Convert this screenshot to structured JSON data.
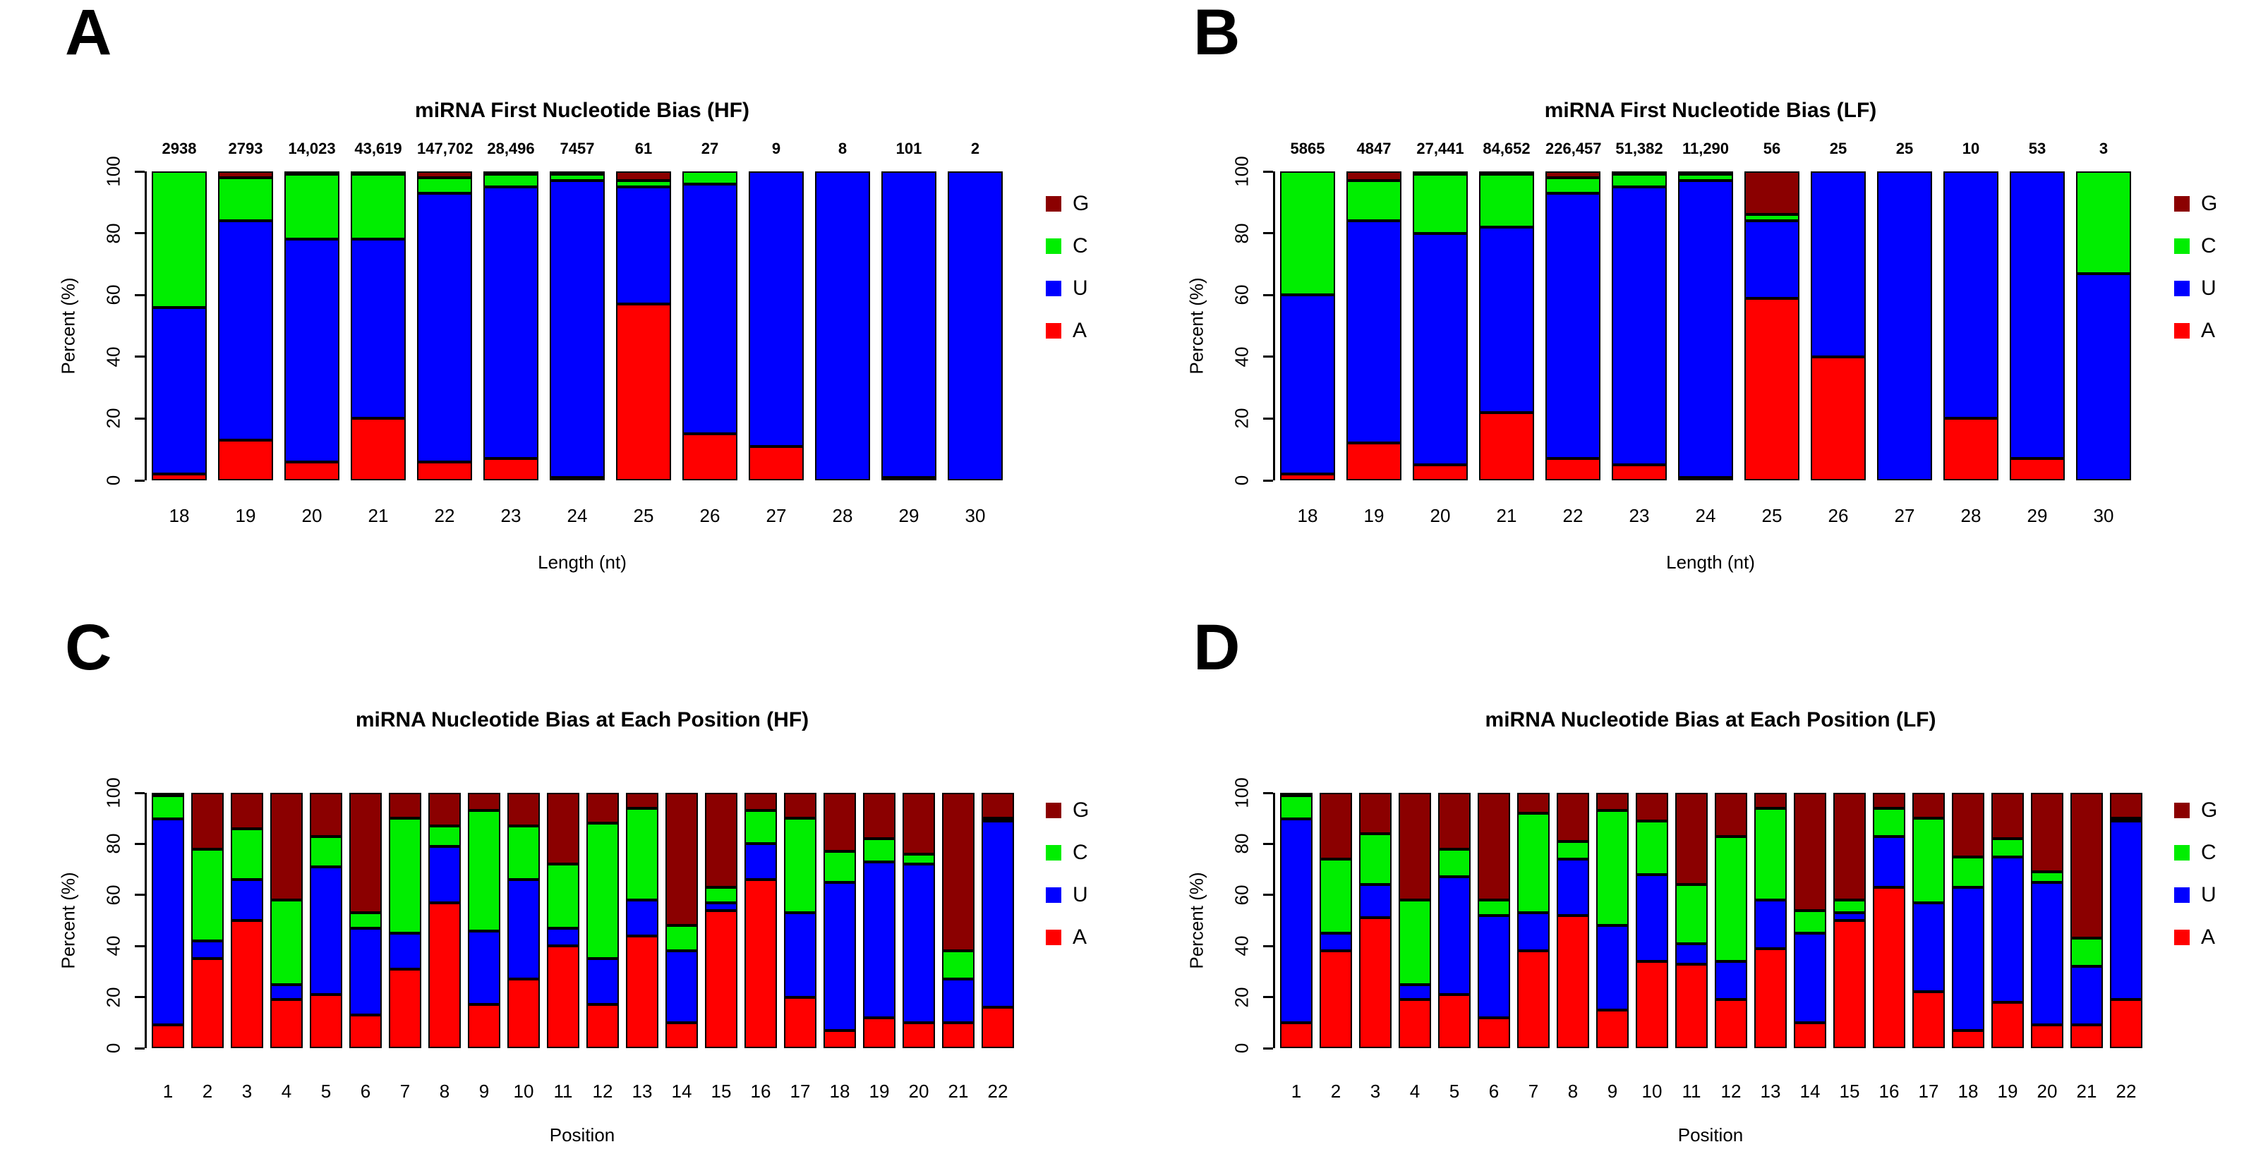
{
  "figure": {
    "background": "#ffffff",
    "colors": {
      "G": "#8b0000",
      "C": "#00ee00",
      "U": "#0000ff",
      "A": "#ff0000"
    },
    "legend_order": [
      "G",
      "C",
      "U",
      "A"
    ]
  },
  "chart_data": [
    {
      "id": "A",
      "panel_letter": "A",
      "type": "bar",
      "stacked": true,
      "title": "miRNA First Nucleotide Bias (HF)",
      "xlabel": "Length (nt)",
      "ylabel": "Percent (%)",
      "ylim": [
        0,
        100
      ],
      "yticks": [
        0,
        20,
        40,
        60,
        80,
        100
      ],
      "legend": [
        "G",
        "C",
        "U",
        "A"
      ],
      "legend_position": "right",
      "grid": false,
      "categories": [
        "18",
        "19",
        "20",
        "21",
        "22",
        "23",
        "24",
        "25",
        "26",
        "27",
        "28",
        "29",
        "30"
      ],
      "bar_counts": [
        "2938",
        "2793",
        "14,023",
        "43,619",
        "147,702",
        "28,496",
        "7457",
        "61",
        "27",
        "9",
        "8",
        "101",
        "2"
      ],
      "series": [
        {
          "name": "A",
          "values": [
            2,
            13,
            6,
            20,
            6,
            7,
            1,
            57,
            15,
            11,
            0,
            1,
            0
          ]
        },
        {
          "name": "U",
          "values": [
            54,
            71,
            72,
            58,
            87,
            88,
            96,
            38,
            81,
            89,
            100,
            99,
            100
          ]
        },
        {
          "name": "C",
          "values": [
            44,
            14,
            21,
            21,
            5,
            4,
            2,
            2,
            4,
            0,
            0,
            0,
            0
          ]
        },
        {
          "name": "G",
          "values": [
            0,
            2,
            1,
            1,
            2,
            1,
            1,
            3,
            0,
            0,
            0,
            0,
            0
          ]
        }
      ]
    },
    {
      "id": "B",
      "panel_letter": "B",
      "type": "bar",
      "stacked": true,
      "title": "miRNA First Nucleotide Bias (LF)",
      "xlabel": "Length (nt)",
      "ylabel": "Percent (%)",
      "ylim": [
        0,
        100
      ],
      "yticks": [
        0,
        20,
        40,
        60,
        80,
        100
      ],
      "legend": [
        "G",
        "C",
        "U",
        "A"
      ],
      "legend_position": "right",
      "grid": false,
      "categories": [
        "18",
        "19",
        "20",
        "21",
        "22",
        "23",
        "24",
        "25",
        "26",
        "27",
        "28",
        "29",
        "30"
      ],
      "bar_counts": [
        "5865",
        "4847",
        "27,441",
        "84,652",
        "226,457",
        "51,382",
        "11,290",
        "56",
        "25",
        "25",
        "10",
        "53",
        "3"
      ],
      "series": [
        {
          "name": "A",
          "values": [
            2,
            12,
            5,
            22,
            7,
            5,
            1,
            59,
            40,
            0,
            20,
            7,
            0
          ]
        },
        {
          "name": "U",
          "values": [
            58,
            72,
            75,
            60,
            86,
            90,
            96,
            25,
            60,
            100,
            80,
            93,
            67
          ]
        },
        {
          "name": "C",
          "values": [
            40,
            13,
            19,
            17,
            5,
            4,
            2,
            2,
            0,
            0,
            0,
            0,
            33
          ]
        },
        {
          "name": "G",
          "values": [
            0,
            3,
            1,
            1,
            2,
            1,
            1,
            14,
            0,
            0,
            0,
            0,
            0
          ]
        }
      ]
    },
    {
      "id": "C",
      "panel_letter": "C",
      "type": "bar",
      "stacked": true,
      "title": "miRNA Nucleotide Bias at Each Position (HF)",
      "xlabel": "Position",
      "ylabel": "Percent (%)",
      "ylim": [
        0,
        100
      ],
      "yticks": [
        0,
        20,
        40,
        60,
        80,
        100
      ],
      "legend": [
        "G",
        "C",
        "U",
        "A"
      ],
      "legend_position": "right",
      "grid": false,
      "categories": [
        "1",
        "2",
        "3",
        "4",
        "5",
        "6",
        "7",
        "8",
        "9",
        "10",
        "11",
        "12",
        "13",
        "14",
        "15",
        "16",
        "17",
        "18",
        "19",
        "20",
        "21",
        "22"
      ],
      "bar_counts": null,
      "series": [
        {
          "name": "A",
          "values": [
            9,
            35,
            50,
            19,
            21,
            13,
            31,
            57,
            17,
            27,
            40,
            17,
            44,
            10,
            54,
            66,
            20,
            7,
            12,
            10,
            10,
            16
          ]
        },
        {
          "name": "U",
          "values": [
            81,
            7,
            16,
            6,
            50,
            34,
            14,
            22,
            29,
            39,
            7,
            18,
            14,
            28,
            3,
            14,
            33,
            58,
            61,
            62,
            17,
            73
          ]
        },
        {
          "name": "C",
          "values": [
            9,
            36,
            20,
            33,
            12,
            6,
            45,
            8,
            47,
            21,
            25,
            53,
            36,
            10,
            6,
            13,
            37,
            12,
            9,
            4,
            11,
            1
          ]
        },
        {
          "name": "G",
          "values": [
            1,
            22,
            14,
            42,
            17,
            47,
            10,
            13,
            7,
            13,
            28,
            12,
            6,
            52,
            37,
            7,
            10,
            23,
            18,
            24,
            62,
            10
          ]
        }
      ]
    },
    {
      "id": "D",
      "panel_letter": "D",
      "type": "bar",
      "stacked": true,
      "title": "miRNA Nucleotide Bias at Each Position (LF)",
      "xlabel": "Position",
      "ylabel": "Percent (%)",
      "ylim": [
        0,
        100
      ],
      "yticks": [
        0,
        20,
        40,
        60,
        80,
        100
      ],
      "legend": [
        "G",
        "C",
        "U",
        "A"
      ],
      "legend_position": "right",
      "grid": false,
      "categories": [
        "1",
        "2",
        "3",
        "4",
        "5",
        "6",
        "7",
        "8",
        "9",
        "10",
        "11",
        "12",
        "13",
        "14",
        "15",
        "16",
        "17",
        "18",
        "19",
        "20",
        "21",
        "22"
      ],
      "bar_counts": null,
      "series": [
        {
          "name": "A",
          "values": [
            10,
            38,
            51,
            19,
            21,
            12,
            38,
            52,
            15,
            34,
            33,
            19,
            39,
            10,
            50,
            63,
            22,
            7,
            18,
            9,
            9,
            19
          ]
        },
        {
          "name": "U",
          "values": [
            80,
            7,
            13,
            6,
            46,
            40,
            15,
            22,
            33,
            34,
            8,
            15,
            19,
            35,
            3,
            20,
            35,
            56,
            57,
            56,
            23,
            70
          ]
        },
        {
          "name": "C",
          "values": [
            9,
            29,
            20,
            33,
            11,
            6,
            39,
            7,
            45,
            21,
            23,
            49,
            36,
            9,
            5,
            11,
            33,
            12,
            7,
            4,
            11,
            1
          ]
        },
        {
          "name": "G",
          "values": [
            1,
            26,
            16,
            42,
            22,
            42,
            8,
            19,
            7,
            11,
            36,
            17,
            6,
            46,
            42,
            6,
            10,
            25,
            18,
            31,
            57,
            10
          ]
        }
      ]
    }
  ]
}
